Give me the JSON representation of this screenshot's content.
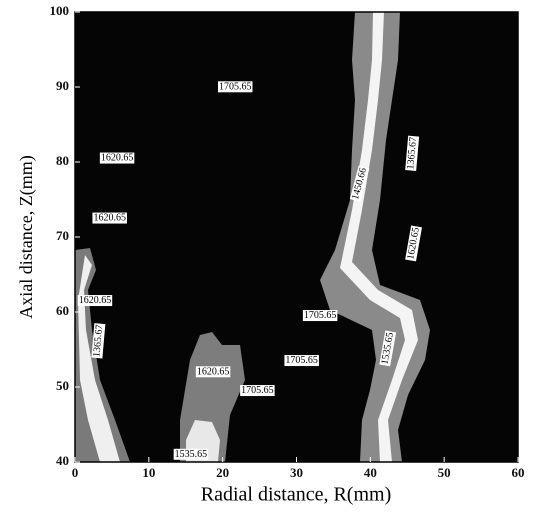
{
  "chart_data": {
    "type": "contour",
    "x_label": "Radial distance, R(mm)",
    "y_label": "Axial distance, Z(mm)",
    "xlim": [
      0,
      60
    ],
    "xticks": [
      0,
      10,
      20,
      30,
      40,
      50,
      60
    ],
    "ylim": [
      40,
      100
    ],
    "yticks": [
      40,
      50,
      60,
      70,
      80,
      90,
      100
    ],
    "annotations": [
      "1705.65",
      "1620.65",
      "1620.65",
      "1620.65",
      "1705.65",
      "1705.65",
      "1620.65",
      "1705.65",
      "1535.65",
      "1450.66",
      "1365.67",
      "1620.65",
      "1535.65",
      "1365.67"
    ]
  }
}
